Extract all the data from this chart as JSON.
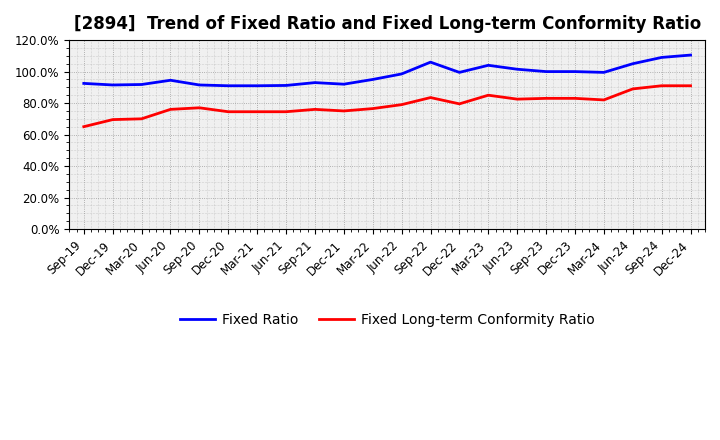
{
  "title": "[2894]  Trend of Fixed Ratio and Fixed Long-term Conformity Ratio",
  "x_labels": [
    "Sep-19",
    "Dec-19",
    "Mar-20",
    "Jun-20",
    "Sep-20",
    "Dec-20",
    "Mar-21",
    "Jun-21",
    "Sep-21",
    "Dec-21",
    "Mar-22",
    "Jun-22",
    "Sep-22",
    "Dec-22",
    "Mar-23",
    "Jun-23",
    "Sep-23",
    "Dec-23",
    "Mar-24",
    "Jun-24",
    "Sep-24",
    "Dec-24"
  ],
  "fixed_ratio": [
    92.5,
    91.5,
    91.8,
    94.5,
    91.5,
    91.0,
    91.0,
    91.2,
    93.0,
    92.0,
    95.0,
    98.5,
    106.0,
    99.5,
    104.0,
    101.5,
    100.0,
    100.0,
    99.5,
    105.0,
    109.0,
    110.5
  ],
  "fixed_lt_ratio": [
    65.0,
    69.5,
    70.0,
    76.0,
    77.0,
    74.5,
    74.5,
    74.5,
    76.0,
    75.0,
    76.5,
    79.0,
    83.5,
    79.5,
    85.0,
    82.5,
    83.0,
    83.0,
    82.0,
    89.0,
    91.0,
    91.0
  ],
  "fixed_ratio_color": "#0000FF",
  "fixed_lt_ratio_color": "#FF0000",
  "background_color": "#FFFFFF",
  "plot_bg_color": "#FFFFFF",
  "ylim": [
    0,
    120
  ],
  "yticks": [
    0,
    20,
    40,
    60,
    80,
    100,
    120
  ],
  "ytick_labels": [
    "0.0%",
    "20.0%",
    "40.0%",
    "60.0%",
    "80.0%",
    "100.0%",
    "120.0%"
  ],
  "legend_fixed_ratio": "Fixed Ratio",
  "legend_fixed_lt_ratio": "Fixed Long-term Conformity Ratio",
  "title_fontsize": 12,
  "axis_fontsize": 8.5,
  "legend_fontsize": 10,
  "line_width": 2.0
}
